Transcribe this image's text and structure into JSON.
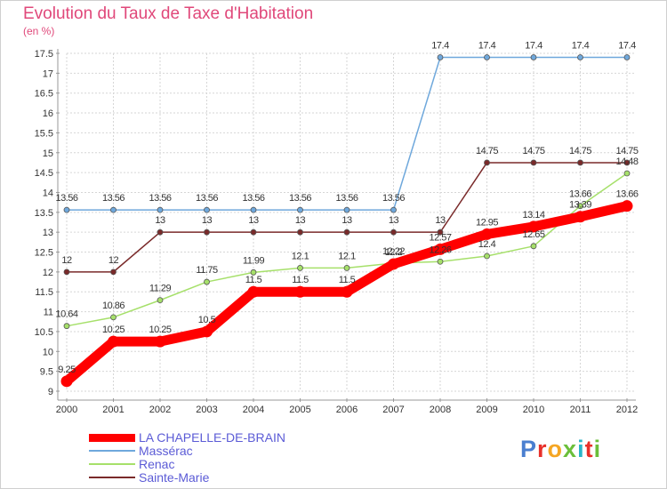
{
  "title": "Evolution du Taux de Taxe d'Habitation",
  "subtitle": "(en %)",
  "logo_text": "Proxiti",
  "chart_data": {
    "type": "line",
    "x": [
      "2000",
      "2001",
      "2002",
      "2003",
      "2004",
      "2005",
      "2006",
      "2007",
      "2008",
      "2009",
      "2010",
      "2011",
      "2012"
    ],
    "ylim": [
      9,
      17.5
    ],
    "yticks": [
      "9",
      "9.5",
      "10",
      "10.5",
      "11",
      "11.5",
      "12",
      "12.5",
      "13",
      "13.5",
      "14",
      "14.5",
      "15",
      "15.5",
      "16",
      "16.5",
      "17",
      "17.5"
    ],
    "grid": true,
    "legend_position": "bottom-left",
    "series": [
      {
        "name": "LA CHAPELLE-DE-BRAIN",
        "color": "#ff0000",
        "values": [
          9.25,
          10.25,
          10.25,
          10.5,
          11.5,
          11.5,
          11.5,
          12.2,
          12.57,
          12.95,
          13.14,
          13.39,
          13.66
        ],
        "labels": [
          "9.25",
          "10.25",
          "10.25",
          "10.5",
          "11.5",
          "11.5",
          "11.5",
          "12.2",
          "12.57",
          "12.95",
          "13.14",
          "13.39",
          "13.66"
        ]
      },
      {
        "name": "Massérac",
        "color": "#6fa8dc",
        "values": [
          13.56,
          13.56,
          13.56,
          13.56,
          13.56,
          13.56,
          13.56,
          13.56,
          17.4,
          17.4,
          17.4,
          17.4,
          17.4
        ],
        "labels": [
          "13.56",
          "13.56",
          "13.56",
          "13.56",
          "13.56",
          "13.56",
          "13.56",
          "13.56",
          "17.4",
          "17.4",
          "17.4",
          "17.4",
          "17.4"
        ]
      },
      {
        "name": "Renac",
        "color": "#a6e06a",
        "values": [
          10.64,
          10.86,
          11.29,
          11.75,
          11.99,
          12.1,
          12.1,
          12.22,
          12.26,
          12.4,
          12.65,
          13.66,
          14.48
        ],
        "labels": [
          "10.64",
          "10.86",
          "11.29",
          "11.75",
          "11.99",
          "12.1",
          "12.1",
          "12.22",
          "12.26",
          "12.4",
          "12.65",
          "13.66",
          "14.48"
        ]
      },
      {
        "name": "Sainte-Marie",
        "color": "#7a2a2a",
        "values": [
          12,
          12,
          13,
          13,
          13,
          13,
          13,
          13,
          13,
          14.75,
          14.75,
          14.75,
          14.75
        ],
        "labels": [
          "12",
          "12",
          "13",
          "13",
          "13",
          "13",
          "13",
          "13",
          "13",
          "14.75",
          "14.75",
          "14.75",
          "14.75"
        ]
      }
    ]
  }
}
